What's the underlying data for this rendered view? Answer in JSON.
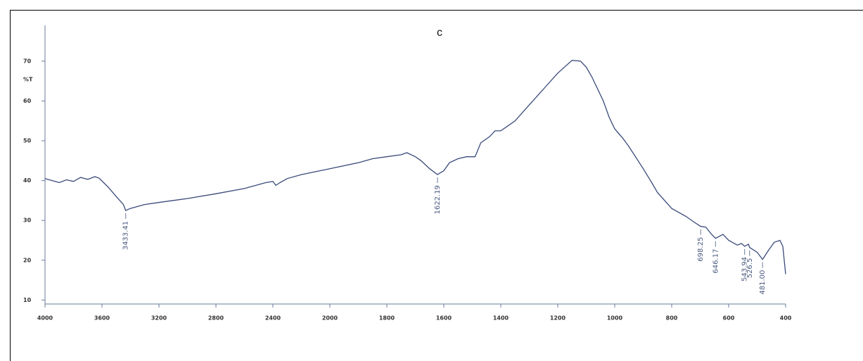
{
  "chart_data": {
    "type": "line",
    "title": "c",
    "ylabel": "%T",
    "color": "#3a4a7a",
    "x": [
      4000,
      3950,
      3900,
      3850,
      3800,
      3750,
      3700,
      3650,
      3620,
      3560,
      3500,
      3450,
      3433.41,
      3400,
      3350,
      3300,
      3200,
      3000,
      2800,
      2600,
      2450,
      2400,
      2380,
      2350,
      2300,
      2200,
      2000,
      1900,
      1850,
      1800,
      1750,
      1730,
      1700,
      1680,
      1650,
      1622.19,
      1600,
      1580,
      1550,
      1520,
      1490,
      1470,
      1440,
      1420,
      1400,
      1380,
      1350,
      1300,
      1250,
      1200,
      1150,
      1120,
      1100,
      1080,
      1060,
      1040,
      1020,
      1000,
      970,
      950,
      900,
      870,
      850,
      800,
      750,
      720,
      698.25,
      680,
      660,
      646.17,
      620,
      600,
      570,
      555,
      543.94,
      530,
      526.5,
      500,
      481,
      460,
      440,
      420,
      410,
      400
    ],
    "values": [
      40.5,
      40,
      39.5,
      40.2,
      39.8,
      40.8,
      40.3,
      41,
      40.6,
      38.5,
      36,
      34,
      32.5,
      33,
      33.5,
      34,
      34.5,
      35.5,
      36.7,
      38,
      39.5,
      39.8,
      38.8,
      39.5,
      40.5,
      41.5,
      43,
      44.5,
      45.5,
      46,
      46.5,
      47,
      46,
      45,
      43,
      41.5,
      42.5,
      44.5,
      45.5,
      46,
      46,
      49.5,
      51,
      52.5,
      52.5,
      53.5,
      55,
      59,
      63,
      67,
      70.2,
      70,
      68.5,
      66,
      63,
      60,
      56,
      53,
      50.5,
      48.5,
      43,
      39.5,
      37,
      33,
      31,
      29.5,
      28.5,
      28.3,
      26.5,
      25.5,
      26.5,
      25,
      23.8,
      24.2,
      23.5,
      24,
      23.2,
      22,
      20.2,
      22.5,
      24.5,
      25,
      23.5,
      16.5
    ],
    "peaks": [
      3433.41,
      1622.19,
      698.25,
      646.17,
      543.94,
      526.5,
      {
        "value": 481,
        "label": "481.00"
      }
    ],
    "xlim": [
      4000,
      400
    ],
    "xticks": [
      4000,
      3600,
      3200,
      2800,
      2400,
      2000,
      1800,
      1600,
      1400,
      1200,
      1000,
      800,
      600,
      400
    ],
    "ylim": [
      9,
      79
    ],
    "yticks": [
      10,
      20,
      30,
      40,
      50,
      60,
      70
    ]
  }
}
